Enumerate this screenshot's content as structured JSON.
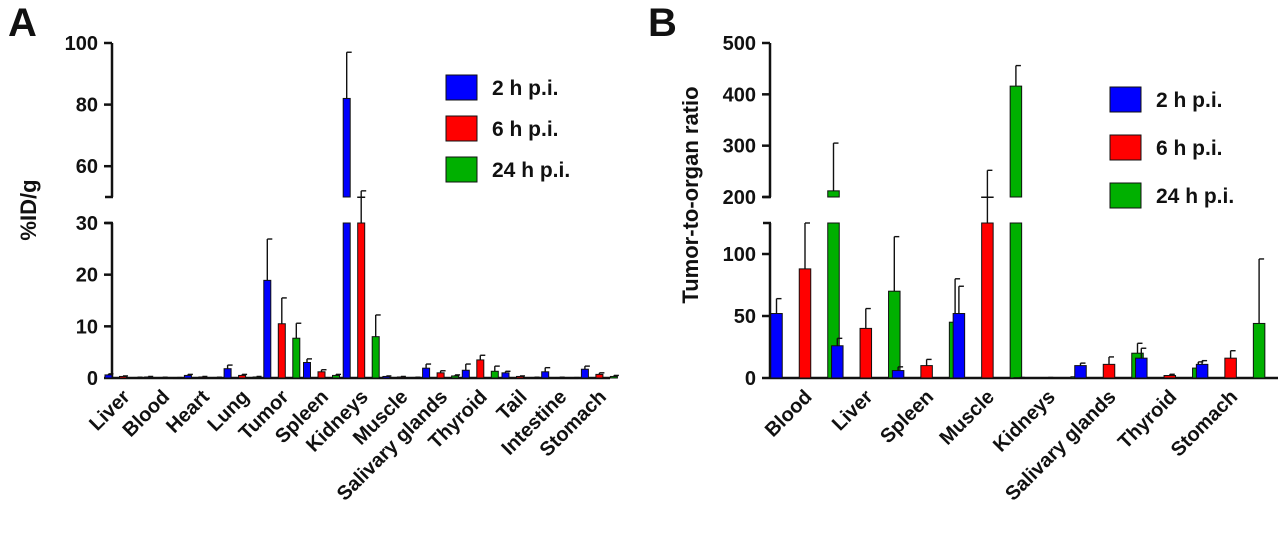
{
  "chart_data": [
    {
      "type": "bar",
      "panel": "A",
      "ylabel": "%ID/g",
      "xlabel": "",
      "broken_axis": true,
      "lower_range": [
        0,
        30
      ],
      "upper_range": [
        50,
        100
      ],
      "lower_ticks": [
        0,
        10,
        20,
        30
      ],
      "upper_ticks": [
        60,
        80,
        100
      ],
      "categories": [
        "Liver",
        "Blood",
        "Heart",
        "Lung",
        "Tumor",
        "Spleen",
        "Kidneys",
        "Muscle",
        "Salivary glands",
        "Thyroid",
        "Tail",
        "Intestine",
        "Stomach"
      ],
      "series": [
        {
          "name": "2 h p.i.",
          "color": "#0000ff",
          "values": [
            0.6,
            0.2,
            0.5,
            1.8,
            18.9,
            3.0,
            82,
            0.3,
            1.9,
            1.5,
            1.0,
            1.2,
            1.7
          ],
          "errors": [
            0.2,
            0.1,
            0.2,
            0.7,
            8.0,
            0.7,
            15,
            0.1,
            0.8,
            1.2,
            0.3,
            0.8,
            0.6
          ]
        },
        {
          "name": "6 h p.i.",
          "color": "#ff0000",
          "values": [
            0.3,
            0.1,
            0.2,
            0.5,
            10.5,
            1.2,
            47,
            0.2,
            1.0,
            3.5,
            0.3,
            0.1,
            0.7
          ],
          "errors": [
            0.1,
            0.05,
            0.1,
            0.2,
            5.0,
            0.4,
            5,
            0.1,
            0.4,
            0.9,
            0.1,
            0.05,
            0.3
          ]
        },
        {
          "name": "24 h p.i.",
          "color": "#00b000",
          "values": [
            0.1,
            0.05,
            0.1,
            0.2,
            7.7,
            0.5,
            8.0,
            0.1,
            0.4,
            1.3,
            0.1,
            0.05,
            0.3
          ],
          "errors": [
            0.05,
            0.03,
            0.05,
            0.1,
            2.9,
            0.2,
            4.2,
            0.05,
            0.2,
            1.0,
            0.05,
            0.03,
            0.2
          ]
        }
      ],
      "legend": [
        "2 h p.i.",
        "6 h p.i.",
        "24 h p.i."
      ],
      "legend_position": "top-right"
    },
    {
      "type": "bar",
      "panel": "B",
      "ylabel": "Tumor-to-organ ratio",
      "xlabel": "",
      "broken_axis": true,
      "lower_range": [
        0,
        125
      ],
      "upper_range": [
        200,
        500
      ],
      "lower_ticks": [
        0,
        50,
        100
      ],
      "upper_ticks": [
        200,
        300,
        400,
        500
      ],
      "categories": [
        "Blood",
        "Liver",
        "Spleen",
        "Muscle",
        "Kidneys",
        "Salivary glands",
        "Thyroid",
        "Stomach"
      ],
      "series": [
        {
          "name": "2 h p.i.",
          "color": "#0000ff",
          "values": [
            52,
            26,
            6,
            52,
            0.3,
            10,
            16,
            11
          ],
          "errors": [
            12,
            6,
            3,
            22,
            0.1,
            2,
            8,
            3
          ]
        },
        {
          "name": "6 h p.i.",
          "color": "#ff0000",
          "values": [
            88,
            40,
            10,
            175,
            0.3,
            11,
            2,
            16
          ],
          "errors": [
            42,
            16,
            5,
            77,
            0.1,
            6,
            1,
            6
          ]
        },
        {
          "name": "24 h p.i.",
          "color": "#00b000",
          "values": [
            212,
            70,
            45,
            416,
            1.0,
            20,
            8,
            44
          ],
          "errors": [
            93,
            44,
            35,
            40,
            0.4,
            8,
            5,
            52
          ]
        }
      ],
      "legend": [
        "2 h p.i.",
        "6 h p.i.",
        "24 h p.i."
      ],
      "legend_position": "top-right"
    }
  ]
}
